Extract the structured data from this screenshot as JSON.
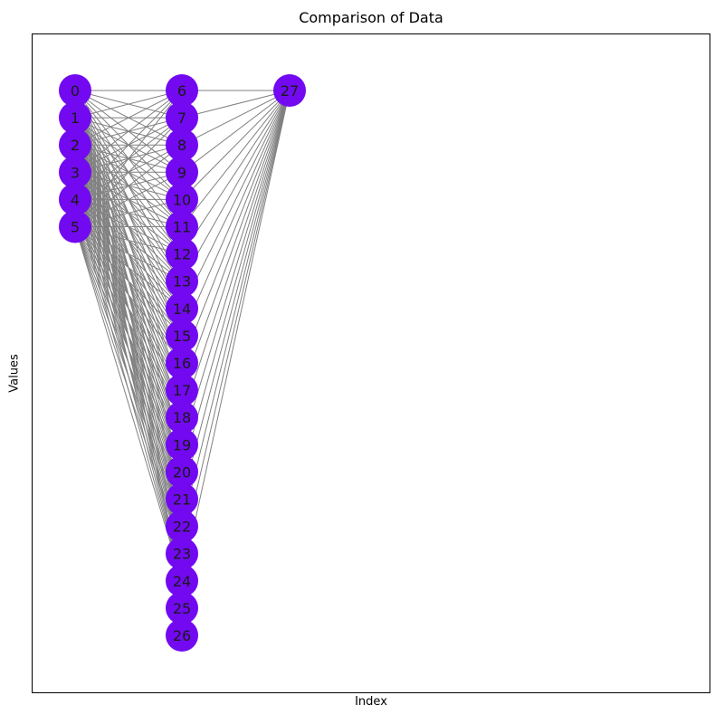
{
  "title": "Comparison of Data",
  "xlabel": "Index",
  "ylabel": "Values",
  "colors": {
    "node": "#7209f0",
    "edge": "#808080",
    "frame": "#000000"
  },
  "graph": {
    "layers": [
      [
        0,
        1,
        2,
        3,
        4,
        5
      ],
      [
        6,
        7,
        8,
        9,
        10,
        11,
        12,
        13,
        14,
        15,
        16,
        17,
        18,
        19,
        20,
        21,
        22,
        23,
        24,
        25,
        26
      ],
      [
        27
      ]
    ],
    "edges": "all nodes in layer 1 connect to every node 6-24 in layer 2; node 27 connects to nodes 6-24"
  }
}
